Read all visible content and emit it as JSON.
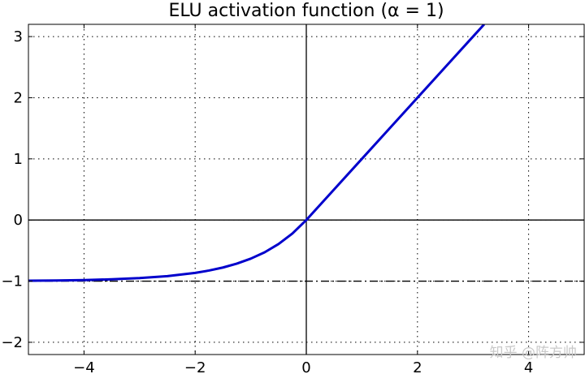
{
  "chart_data": {
    "type": "line",
    "title": "ELU activation function (α = 1)",
    "xlabel": "",
    "ylabel": "",
    "xlim": [
      -5,
      5
    ],
    "ylim": [
      -2.2,
      3.2
    ],
    "grid": true,
    "grid_style": "dotted",
    "xticks": [
      -4,
      -2,
      0,
      2,
      4
    ],
    "xtick_labels": [
      "−4",
      "−2",
      "0",
      "2",
      "4"
    ],
    "yticks": [
      -2,
      -1,
      0,
      1,
      2,
      3
    ],
    "ytick_labels": [
      "−2",
      "−1",
      "0",
      "1",
      "2",
      "3"
    ],
    "series": [
      {
        "function": "elu",
        "alpha": 1,
        "color": "#0000cc",
        "x": [
          -5,
          -4.5,
          -4,
          -3.5,
          -3,
          -2.5,
          -2,
          -1.75,
          -1.5,
          -1.25,
          -1,
          -0.75,
          -0.5,
          -0.25,
          0,
          0.5,
          1,
          1.5,
          2,
          2.5,
          3,
          3.2
        ],
        "y": [
          -0.993,
          -0.989,
          -0.982,
          -0.97,
          -0.95,
          -0.918,
          -0.865,
          -0.826,
          -0.777,
          -0.713,
          -0.632,
          -0.528,
          -0.393,
          -0.221,
          0,
          0.5,
          1,
          1.5,
          2,
          2.5,
          3,
          3.2
        ]
      }
    ],
    "reference_lines": [
      {
        "type": "horizontal",
        "y": -1,
        "style": "dash-dot",
        "color": "#000000"
      },
      {
        "type": "horizontal",
        "y": 0,
        "style": "solid",
        "color": "#000000"
      },
      {
        "type": "vertical",
        "x": 0,
        "style": "solid",
        "color": "#000000"
      }
    ]
  },
  "watermark": "知乎 @阵方帅"
}
